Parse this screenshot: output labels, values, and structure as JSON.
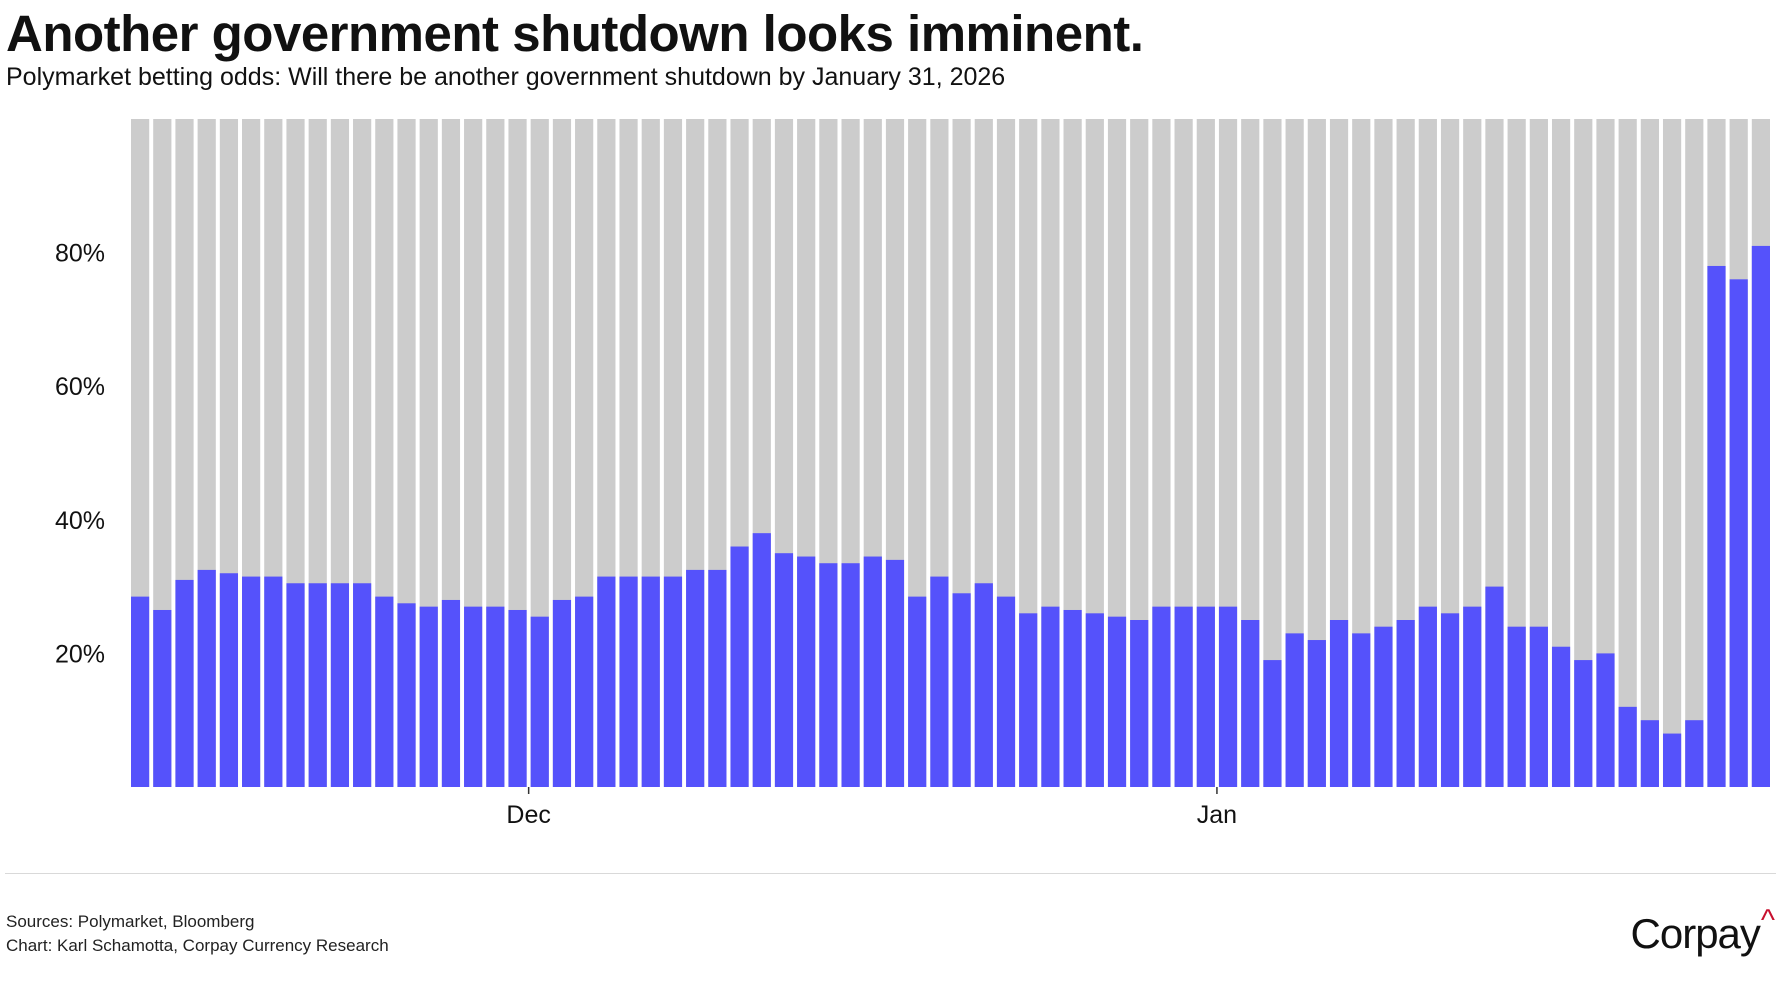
{
  "title": "Another government shutdown looks imminent.",
  "subtitle": "Polymarket betting odds: Will there be another government shutdown by January 31, 2026",
  "sources": {
    "line1": "Sources: Polymarket, Bloomberg",
    "line2": "Chart: Karl Schamotta, Corpay Currency Research"
  },
  "logo": {
    "text": "Corpay",
    "caret": "^"
  },
  "colors": {
    "yes": "#5552fb",
    "background_bar": "#cccccc",
    "accent": "#c8102e"
  },
  "chart_data": {
    "type": "bar",
    "stacked": true,
    "title": "Another government shutdown looks imminent.",
    "subtitle": "Polymarket betting odds: Will there be another government shutdown by January 31, 2026",
    "xlabel": "",
    "ylabel": "",
    "ylim": [
      0,
      100
    ],
    "yticks": [
      20,
      40,
      60,
      80
    ],
    "ytick_labels": [
      "20%",
      "40%",
      "60%",
      "80%"
    ],
    "x_tick_labels": [
      {
        "label": "Dec",
        "after_bar": 17
      },
      {
        "label": "Jan",
        "after_bar": 48
      }
    ],
    "grid": false,
    "legend": "none",
    "series": [
      {
        "values": [
          28.5,
          26.5,
          31,
          32.5,
          32,
          31.5,
          31.5,
          30.5,
          30.5,
          30.5,
          30.5,
          28.5,
          27.5,
          27,
          28,
          27,
          27,
          26.5,
          25.5,
          28,
          28.5,
          31.5,
          31.5,
          31.5,
          31.5,
          32.5,
          32.5,
          36,
          38,
          35,
          34.5,
          33.5,
          33.5,
          34.5,
          34,
          28.5,
          31.5,
          29,
          30.5,
          28.5,
          26,
          27,
          26.5,
          26,
          25.5,
          25,
          27,
          27,
          27,
          27,
          25,
          19,
          23,
          22,
          25,
          23,
          24,
          25,
          27,
          26,
          27,
          30,
          24,
          24,
          21,
          19,
          20,
          12,
          10,
          8,
          10,
          78,
          76,
          81
        ]
      }
    ]
  }
}
